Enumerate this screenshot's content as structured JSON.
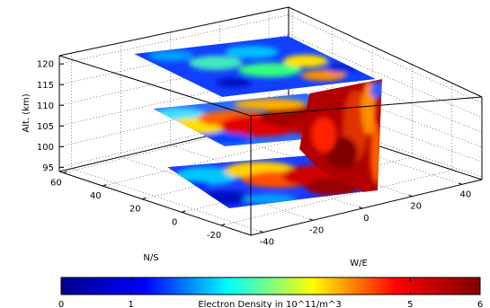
{
  "chart_data": {
    "type": "surface3d",
    "title": "",
    "axes": {
      "z": {
        "label": "Alt. (km)",
        "ticks": [
          95,
          100,
          105,
          110,
          115,
          120
        ],
        "range": [
          94,
          122
        ]
      },
      "ns": {
        "label": "N/S",
        "ticks": [
          60,
          40,
          20,
          0,
          -20
        ],
        "range": [
          -35,
          62
        ]
      },
      "we": {
        "label": "W/E",
        "ticks": [
          -40,
          -20,
          0,
          20,
          40
        ],
        "range": [
          -45,
          48
        ]
      }
    },
    "grid": true,
    "slices": [
      {
        "name": "lower",
        "altitude": 97,
        "peak_density": 6,
        "typical_density": 1
      },
      {
        "name": "middle",
        "altitude": 107,
        "peak_density": 6,
        "typical_density": 2
      },
      {
        "name": "upper",
        "altitude": 119,
        "peak_density": 3,
        "typical_density": 1
      }
    ],
    "vertical_curtain": {
      "ns": 0,
      "altitude_range": [
        95,
        113
      ],
      "peak_density": 6
    },
    "colorbar": {
      "label": "Electron Density in 10^11/m^3",
      "ticks": [
        0,
        1,
        5,
        6
      ],
      "range": [
        0,
        6
      ],
      "colormap": [
        "#00008f",
        "#0000ff",
        "#00ffff",
        "#ffff00",
        "#ff0000",
        "#800000"
      ]
    }
  }
}
